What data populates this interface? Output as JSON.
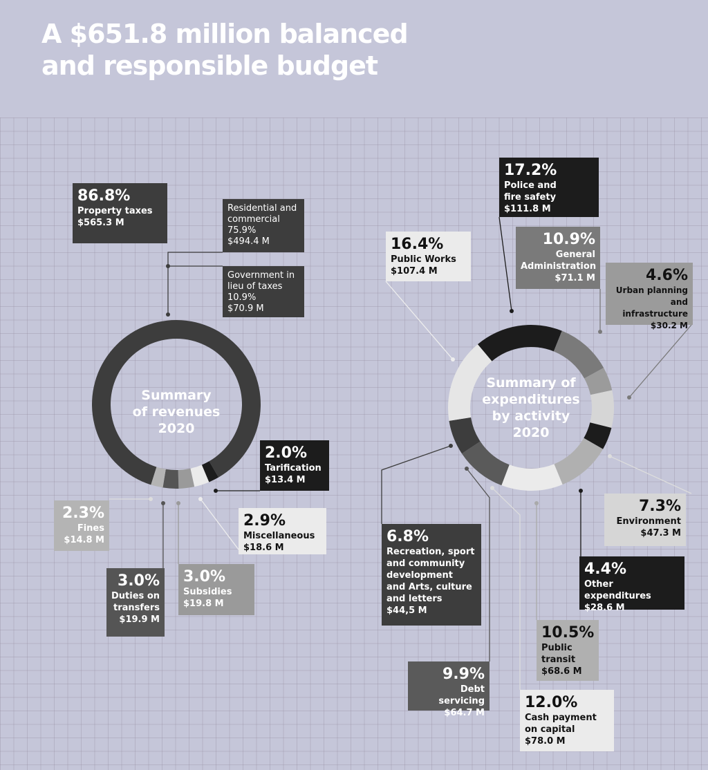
{
  "title": "A $651.8 million balanced and responsible budget",
  "chart_data": [
    {
      "type": "pie",
      "title": "Summary of revenues 2020",
      "total": "$651.8 million",
      "slices": [
        {
          "label": "Property taxes",
          "pct": 86.8,
          "value": "$565.3 M",
          "color": "#3d3d3d"
        },
        {
          "label": "Tarification",
          "pct": 2.0,
          "value": "$13.4 M",
          "color": "#1c1c1c"
        },
        {
          "label": "Miscellaneous",
          "pct": 2.9,
          "value": "$18.6 M",
          "color": "#ebebeb"
        },
        {
          "label": "Subsidies",
          "pct": 3.0,
          "value": "$19.8 M",
          "color": "#9a9a9a"
        },
        {
          "label": "Duties on transfers",
          "pct": 3.0,
          "value": "$19.9 M",
          "color": "#555555"
        },
        {
          "label": "Fines",
          "pct": 2.3,
          "value": "$14.8 M",
          "color": "#b4b4b4"
        }
      ],
      "sub_breakdown": [
        {
          "label": "Residential and commercial",
          "pct": "75.9%",
          "value": "$494.4 M"
        },
        {
          "label": "Government in lieu of taxes",
          "pct": "10.9%",
          "value": "$70.9 M"
        }
      ]
    },
    {
      "type": "pie",
      "title": "Summary of expenditures by activity 2020",
      "slices": [
        {
          "label": "Police and fire safety",
          "pct": 17.2,
          "value": "$111.8 M",
          "color": "#1c1c1c"
        },
        {
          "label": "General Administration",
          "pct": 10.9,
          "value": "$71.1 M",
          "color": "#7a7a7a"
        },
        {
          "label": "Urban planning and infrastructure",
          "pct": 4.6,
          "value": "$30.2 M",
          "color": "#9b9b9b"
        },
        {
          "label": "Environment",
          "pct": 7.3,
          "value": "$47.3 M",
          "color": "#d6d6d6"
        },
        {
          "label": "Other expenditures",
          "pct": 4.4,
          "value": "$28.6 M",
          "color": "#1c1c1c"
        },
        {
          "label": "Public transit",
          "pct": 10.5,
          "value": "$68.6 M",
          "color": "#b0b0b0"
        },
        {
          "label": "Cash payment on capital",
          "pct": 12.0,
          "value": "$78.0 M",
          "color": "#ebebeb"
        },
        {
          "label": "Debt servicing",
          "pct": 9.9,
          "value": "$64.7 M",
          "color": "#5a5a5a"
        },
        {
          "label": "Recreation, sport and community development and Arts, culture and letters",
          "pct": 6.8,
          "value": "$44,5 M",
          "color": "#3d3d3d"
        },
        {
          "label": "Public Works",
          "pct": 16.4,
          "value": "$107.4 M",
          "color": "#e6e6e6"
        }
      ]
    }
  ],
  "labels": {
    "rev_center": [
      "Summary",
      "of revenues",
      "2020"
    ],
    "exp_center": [
      "Summary of",
      "expenditures",
      "by activity",
      "2020"
    ],
    "property": {
      "pct": "86.8%",
      "name": "Property taxes",
      "value": "$565.3 M"
    },
    "residential": {
      "l1": "Residential and",
      "l2": "commercial",
      "pct": "75.9%",
      "value": "$494.4 M"
    },
    "government": {
      "l1": "Government in",
      "l2": "lieu of taxes",
      "pct": "10.9%",
      "value": "$70.9 M"
    },
    "tarification": {
      "pct": "2.0%",
      "name": "Tarification",
      "value": "$13.4 M"
    },
    "misc": {
      "pct": "2.9%",
      "name": "Miscellaneous",
      "value": "$18.6 M"
    },
    "fines": {
      "pct": "2.3%",
      "name": "Fines",
      "value": "$14.8 M"
    },
    "duties": {
      "pct": "3.0%",
      "l1": "Duties on",
      "l2": "transfers",
      "value": "$19.9 M"
    },
    "subsidies": {
      "pct": "3.0%",
      "name": "Subsidies",
      "value": "$19.8 M"
    },
    "police": {
      "pct": "17.2%",
      "l1": "Police and",
      "l2": "fire safety",
      "value": "$111.8 M"
    },
    "works": {
      "pct": "16.4%",
      "name": "Public Works",
      "value": "$107.4 M"
    },
    "admin": {
      "pct": "10.9%",
      "l1": "General",
      "l2": "Administration",
      "value": "$71.1 M"
    },
    "urban": {
      "pct": "4.6%",
      "l1": "Urban planning",
      "l2": "and infrastructure",
      "value": "$30.2 M"
    },
    "environment": {
      "pct": "7.3%",
      "name": "Environment",
      "value": "$47.3 M"
    },
    "other": {
      "pct": "4.4%",
      "name": "Other expenditures",
      "value": "$28.6 M"
    },
    "recreation": {
      "pct": "6.8%",
      "l1": "Recreation, sport",
      "l2": "and community",
      "l3": "development",
      "l4": "and Arts, culture",
      "l5": "and letters",
      "value": "$44,5 M"
    },
    "transit": {
      "pct": "10.5%",
      "l1": "Public",
      "l2": "transit",
      "value": "$68.6 M"
    },
    "debt": {
      "pct": "9.9%",
      "name": "Debt servicing",
      "value": "$64.7 M"
    },
    "cash": {
      "pct": "12.0%",
      "l1": "Cash payment",
      "l2": "on capital",
      "value": "$78.0 M"
    }
  }
}
